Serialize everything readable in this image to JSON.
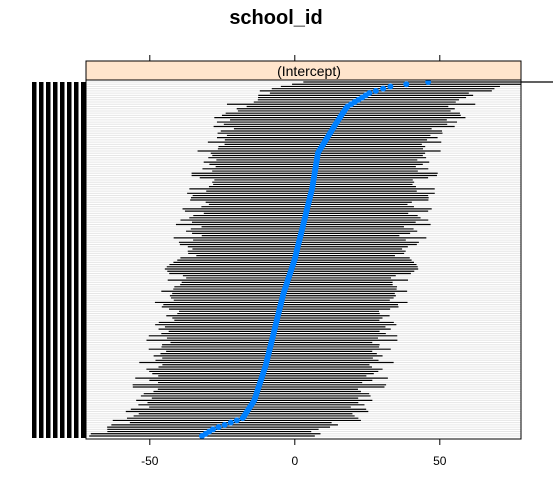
{
  "chart_data": {
    "type": "scatter",
    "title": "school_id",
    "panel_label": "(Intercept)",
    "xlabel": "",
    "ylabel": "",
    "xlim": [
      -72,
      78
    ],
    "xticks": [
      -50,
      0,
      50
    ],
    "xtick_labels": [
      "-50",
      "0",
      "50"
    ],
    "grid": true,
    "y_axis_tick_labels_illegible": true,
    "n_groups": 160,
    "estimate_quantiles": [
      [
        0.0,
        -32
      ],
      [
        0.02,
        -28
      ],
      [
        0.05,
        -18
      ],
      [
        0.1,
        -14
      ],
      [
        0.2,
        -10
      ],
      [
        0.3,
        -7
      ],
      [
        0.4,
        -4
      ],
      [
        0.5,
        0
      ],
      [
        0.6,
        3
      ],
      [
        0.7,
        6
      ],
      [
        0.8,
        8
      ],
      [
        0.88,
        14
      ],
      [
        0.93,
        18
      ],
      [
        0.97,
        26
      ],
      [
        0.99,
        34
      ],
      [
        1.0,
        46
      ]
    ],
    "interval_halfwidth": [
      34,
      44
    ],
    "colors": {
      "point": "#0080ff",
      "interval": "#000000",
      "strip_bg": "#ffe5cc",
      "grid": "#e6e6e6"
    }
  }
}
